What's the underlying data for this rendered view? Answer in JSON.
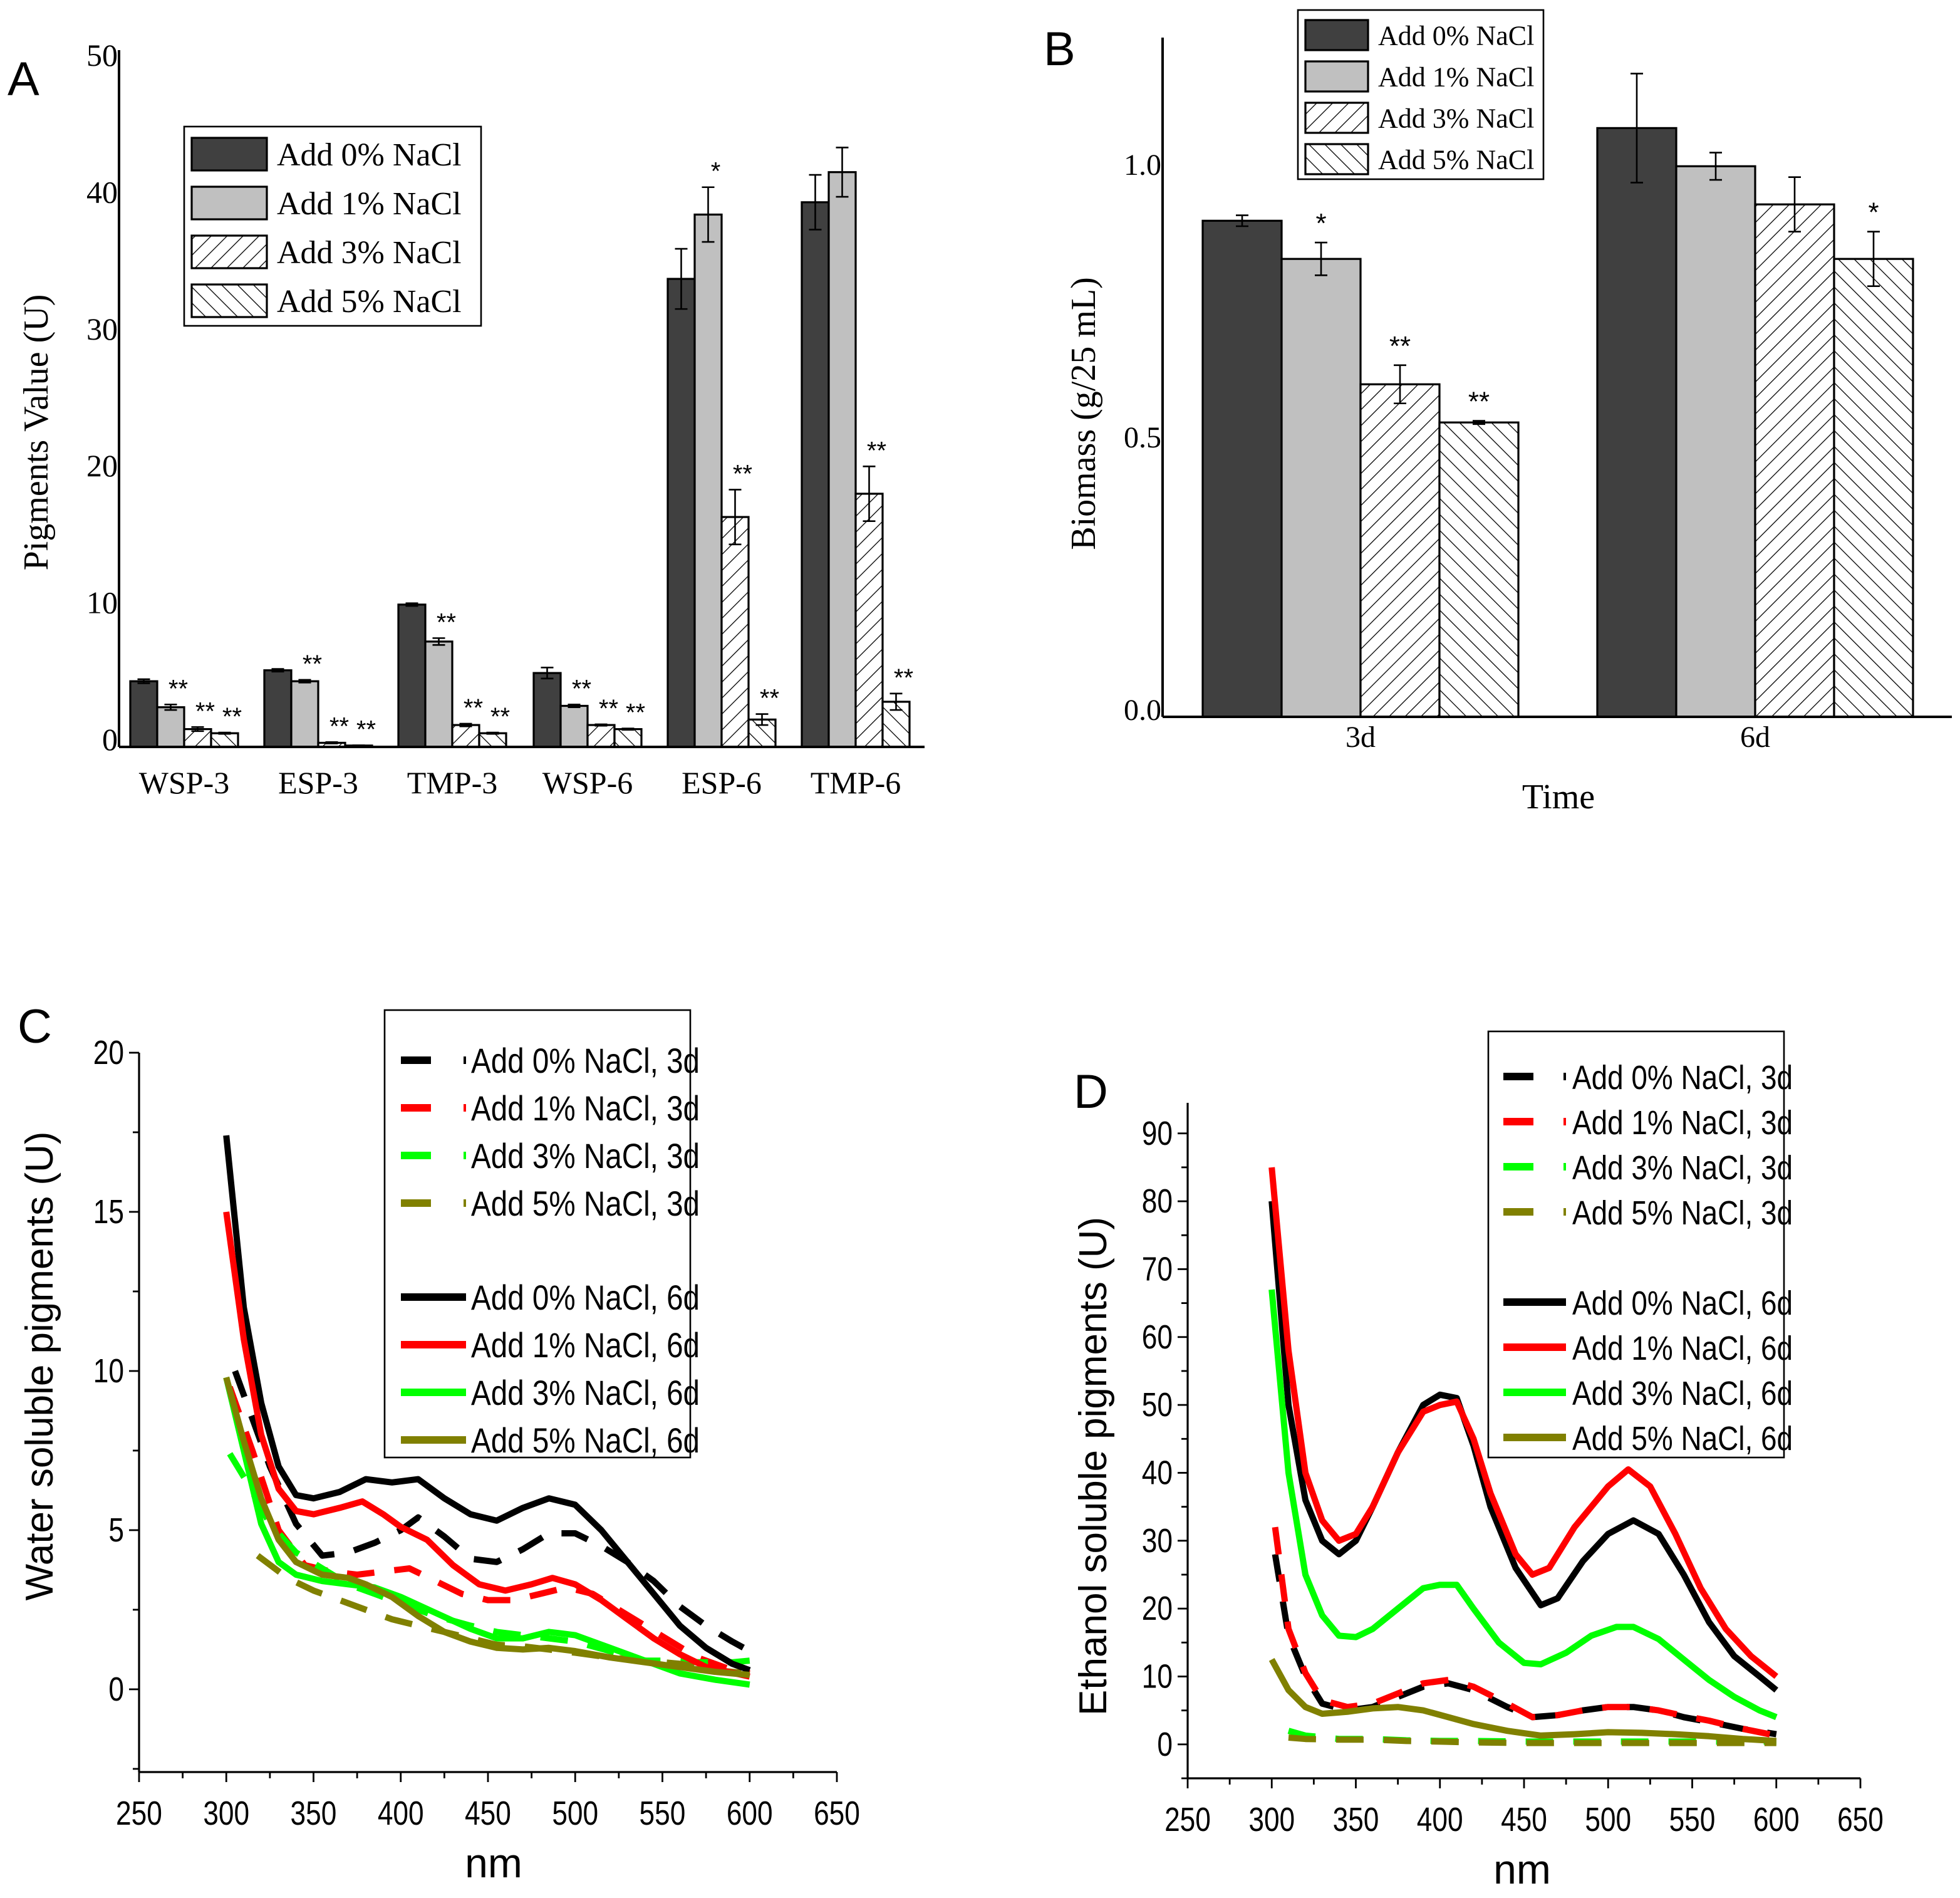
{
  "figure_labels": {
    "a": "A",
    "b": "B",
    "c": "C",
    "d": "D"
  },
  "colors": {
    "dark_bar": "#404040",
    "light_bar": "#c0c0c0",
    "black": "#000000",
    "red": "#ff0000",
    "green": "#00ff00",
    "olive": "#808000"
  },
  "chart_data": [
    {
      "panel": "A",
      "type": "bar",
      "title": "",
      "xlabel": "",
      "ylabel": "Pigments Value (U)",
      "ylim": [
        0,
        50
      ],
      "yticks": [
        "0",
        "10",
        "20",
        "30",
        "40",
        "50"
      ],
      "categories": [
        "WSP-3",
        "ESP-3",
        "TMP-3",
        "WSP-6",
        "ESP-6",
        "TMP-6"
      ],
      "legend_position": "upper-left",
      "series": [
        {
          "name": "Add 0% NaCl",
          "fill": "dark",
          "values": [
            4.8,
            5.6,
            10.4,
            5.4,
            34.2,
            39.8
          ],
          "errors": [
            0.15,
            0.1,
            0.1,
            0.4,
            2.2,
            2.0
          ],
          "significance": [
            "",
            "",
            "",
            "",
            "",
            ""
          ]
        },
        {
          "name": "Add 1% NaCl",
          "fill": "light",
          "values": [
            2.9,
            4.8,
            7.7,
            3.0,
            38.9,
            42.0
          ],
          "errors": [
            0.2,
            0.1,
            0.25,
            0.1,
            2.0,
            1.8
          ],
          "significance": [
            "**",
            "**",
            "**",
            "**",
            "*",
            ""
          ]
        },
        {
          "name": "Add 3% NaCl",
          "fill": "hatch-forward",
          "values": [
            1.3,
            0.3,
            1.6,
            1.6,
            16.8,
            18.5
          ],
          "errors": [
            0.15,
            0.05,
            0.1,
            0.05,
            2.0,
            2.0
          ],
          "significance": [
            "**",
            "**",
            "**",
            "**",
            "**",
            "**"
          ]
        },
        {
          "name": "Add 5% NaCl",
          "fill": "hatch-back",
          "values": [
            1.0,
            0.1,
            1.0,
            1.3,
            2.0,
            3.3
          ],
          "errors": [
            0.05,
            0.02,
            0.05,
            0.05,
            0.4,
            0.6
          ],
          "significance": [
            "**",
            "**",
            "**",
            "**",
            "**",
            "**"
          ]
        }
      ]
    },
    {
      "panel": "B",
      "type": "bar",
      "title": "",
      "xlabel": "Time",
      "ylabel": "Biomass (g/25 mL)",
      "ylim": [
        0,
        1.25
      ],
      "yticks": [
        "0.0",
        "0.5",
        "1.0"
      ],
      "categories": [
        "3d",
        "6d"
      ],
      "legend_position": "top-center",
      "series": [
        {
          "name": "Add 0% NaCl",
          "fill": "dark",
          "values": [
            0.91,
            1.08
          ],
          "errors": [
            0.01,
            0.1
          ],
          "significance": [
            "",
            ""
          ]
        },
        {
          "name": "Add 1% NaCl",
          "fill": "light",
          "values": [
            0.84,
            1.01
          ],
          "errors": [
            0.03,
            0.025
          ],
          "significance": [
            "*",
            ""
          ]
        },
        {
          "name": "Add 3% NaCl",
          "fill": "hatch-forward",
          "values": [
            0.61,
            0.94
          ],
          "errors": [
            0.035,
            0.05
          ],
          "significance": [
            "**",
            ""
          ]
        },
        {
          "name": "Add 5% NaCl",
          "fill": "hatch-back",
          "values": [
            0.54,
            0.84
          ],
          "errors": [
            0.003,
            0.05
          ],
          "significance": [
            "**",
            "*"
          ]
        }
      ]
    },
    {
      "panel": "C",
      "type": "line",
      "title": "",
      "xlabel": "nm",
      "ylabel": "Water soluble pigments (U)",
      "xlim": [
        250,
        650
      ],
      "ylim": [
        -2.6,
        20
      ],
      "xticks": [
        "250",
        "300",
        "350",
        "400",
        "450",
        "500",
        "550",
        "600",
        "650"
      ],
      "yticks": [
        "0",
        "5",
        "10",
        "15",
        "20"
      ],
      "legend_position": "upper-right",
      "series": [
        {
          "name": "Add 0% NaCl, 3d",
          "color": "black",
          "style": "dashed",
          "x": [
            305,
            315,
            325,
            340,
            355,
            370,
            385,
            400,
            410,
            425,
            440,
            455,
            470,
            485,
            500,
            515,
            530,
            545,
            560,
            575,
            590,
            600
          ],
          "y": [
            10,
            8.5,
            7,
            5.2,
            4.2,
            4.3,
            4.6,
            5.0,
            5.4,
            4.8,
            4.1,
            4.0,
            4.4,
            4.9,
            4.9,
            4.5,
            4.0,
            3.4,
            2.6,
            2.0,
            1.5,
            1.2
          ]
        },
        {
          "name": "Add 1% NaCl, 3d",
          "color": "red",
          "style": "dashed",
          "x": [
            302,
            315,
            330,
            345,
            360,
            375,
            390,
            405,
            420,
            435,
            450,
            465,
            480,
            495,
            510,
            525,
            540,
            555,
            570,
            590,
            600
          ],
          "y": [
            9.5,
            7.5,
            5.0,
            3.9,
            3.7,
            3.6,
            3.7,
            3.8,
            3.4,
            3.0,
            2.8,
            2.8,
            3.0,
            3.2,
            3.0,
            2.5,
            2.0,
            1.5,
            1.0,
            0.6,
            0.5
          ]
        },
        {
          "name": "Add 3% NaCl, 3d",
          "color": "green",
          "style": "dashed",
          "x": [
            302,
            312,
            325,
            340,
            355,
            370,
            385,
            400,
            420,
            440,
            455,
            470,
            485,
            500,
            520,
            540,
            555,
            570,
            590,
            600
          ],
          "y": [
            7.4,
            6.5,
            5.2,
            4.3,
            3.8,
            3.3,
            3.0,
            2.7,
            2.3,
            2.0,
            1.8,
            1.7,
            1.6,
            1.5,
            1.2,
            0.9,
            0.9,
            0.85,
            0.85,
            0.9
          ]
        },
        {
          "name": "Add 5% NaCl, 3d",
          "color": "olive",
          "style": "dashed",
          "x": [
            318,
            335,
            350,
            365,
            380,
            395,
            410,
            425,
            440,
            455,
            470,
            485,
            500,
            520,
            540,
            560,
            580,
            600
          ],
          "y": [
            4.2,
            3.5,
            3.1,
            2.8,
            2.5,
            2.2,
            2.0,
            1.8,
            1.6,
            1.4,
            1.35,
            1.25,
            1.15,
            1.0,
            0.9,
            0.8,
            0.6,
            0.5
          ]
        },
        {
          "name": "Add 0% NaCl, 6d",
          "color": "black",
          "style": "solid",
          "x": [
            300,
            310,
            320,
            330,
            340,
            350,
            365,
            380,
            395,
            410,
            425,
            440,
            455,
            470,
            485,
            500,
            515,
            530,
            545,
            560,
            575,
            590,
            600
          ],
          "y": [
            17.4,
            12,
            9,
            7,
            6.1,
            6.0,
            6.2,
            6.6,
            6.5,
            6.6,
            6.0,
            5.5,
            5.3,
            5.7,
            6.0,
            5.8,
            5.0,
            4.0,
            3.0,
            2.0,
            1.3,
            0.8,
            0.6
          ]
        },
        {
          "name": "Add 1% NaCl, 6d",
          "color": "red",
          "style": "solid",
          "x": [
            300,
            310,
            320,
            330,
            340,
            350,
            365,
            378,
            390,
            400,
            415,
            430,
            445,
            460,
            475,
            487,
            500,
            515,
            530,
            545,
            560,
            575,
            600
          ],
          "y": [
            15.0,
            11,
            8,
            6.3,
            5.6,
            5.5,
            5.7,
            5.9,
            5.5,
            5.1,
            4.7,
            3.9,
            3.3,
            3.1,
            3.3,
            3.5,
            3.3,
            2.8,
            2.2,
            1.6,
            1.1,
            0.7,
            0.4
          ]
        },
        {
          "name": "Add 3% NaCl, 6d",
          "color": "green",
          "style": "solid",
          "x": [
            300,
            310,
            320,
            330,
            340,
            355,
            370,
            385,
            400,
            420,
            440,
            455,
            470,
            485,
            500,
            520,
            540,
            560,
            580,
            600
          ],
          "y": [
            9.8,
            7.5,
            5.2,
            4.0,
            3.6,
            3.4,
            3.3,
            3.2,
            2.9,
            2.4,
            1.9,
            1.6,
            1.6,
            1.8,
            1.7,
            1.3,
            0.9,
            0.5,
            0.3,
            0.15
          ]
        },
        {
          "name": "Add 5% NaCl, 6d",
          "color": "olive",
          "style": "solid",
          "x": [
            300,
            310,
            320,
            330,
            340,
            355,
            370,
            380,
            395,
            410,
            425,
            440,
            455,
            470,
            485,
            500,
            520,
            540,
            560,
            580,
            600
          ],
          "y": [
            9.8,
            7.8,
            6.0,
            4.7,
            4.0,
            3.6,
            3.5,
            3.3,
            2.9,
            2.3,
            1.8,
            1.5,
            1.3,
            1.25,
            1.3,
            1.2,
            1.0,
            0.85,
            0.7,
            0.55,
            0.45
          ]
        }
      ]
    },
    {
      "panel": "D",
      "type": "line",
      "title": "",
      "xlabel": "nm",
      "ylabel": "Ethanol soluble pigments (U)",
      "xlim": [
        250,
        650
      ],
      "ylim": [
        -5,
        94.5
      ],
      "xticks": [
        "250",
        "300",
        "350",
        "400",
        "450",
        "500",
        "550",
        "600",
        "650"
      ],
      "yticks": [
        "0",
        "10",
        "20",
        "30",
        "40",
        "50",
        "60",
        "70",
        "80",
        "90"
      ],
      "legend_position": "upper-right",
      "series": [
        {
          "name": "Add 0% NaCl, 3d",
          "color": "black",
          "style": "dashed",
          "x": [
            302,
            310,
            320,
            330,
            345,
            360,
            375,
            390,
            405,
            420,
            440,
            455,
            470,
            485,
            500,
            515,
            530,
            545,
            560,
            580,
            600
          ],
          "y": [
            28,
            16,
            10,
            6,
            5,
            5.5,
            7,
            8.5,
            9,
            8,
            5.5,
            4,
            4.3,
            5,
            5.5,
            5.5,
            5,
            4,
            3.3,
            2.3,
            1.5
          ]
        },
        {
          "name": "Add 1% NaCl, 3d",
          "color": "red",
          "style": "dashed",
          "x": [
            302,
            310,
            320,
            330,
            345,
            360,
            375,
            390,
            405,
            420,
            440,
            455,
            470,
            485,
            500,
            515,
            530,
            545,
            560,
            580,
            600
          ],
          "y": [
            32,
            17,
            10.5,
            6.5,
            5.5,
            6,
            7.5,
            9,
            9.5,
            8.5,
            6,
            4,
            4.3,
            5,
            5.5,
            5.5,
            5,
            4.2,
            3.5,
            2.3,
            1.3
          ]
        },
        {
          "name": "Add 3% NaCl, 3d",
          "color": "green",
          "style": "dashed",
          "x": [
            310,
            320,
            340,
            360,
            380,
            400,
            420,
            450,
            480,
            510,
            540,
            570,
            600
          ],
          "y": [
            2,
            1.3,
            0.8,
            0.8,
            0.6,
            0.5,
            0.5,
            0.4,
            0.4,
            0.4,
            0.4,
            0.4,
            0.4
          ]
        },
        {
          "name": "Add 5% NaCl, 3d",
          "color": "olive",
          "style": "dashed",
          "x": [
            310,
            320,
            340,
            360,
            380,
            400,
            420,
            450,
            480,
            510,
            540,
            570,
            600
          ],
          "y": [
            1,
            0.8,
            0.7,
            0.7,
            0.5,
            0.4,
            0.3,
            0.2,
            0.2,
            0.2,
            0.2,
            0.2,
            0.2
          ]
        },
        {
          "name": "Add 0% NaCl, 6d",
          "color": "black",
          "style": "solid",
          "x": [
            300,
            310,
            320,
            330,
            340,
            350,
            360,
            375,
            390,
            400,
            410,
            420,
            430,
            445,
            460,
            470,
            485,
            500,
            515,
            530,
            545,
            560,
            575,
            590,
            600
          ],
          "y": [
            80,
            50,
            36,
            30,
            28,
            30,
            35,
            43,
            50,
            51.5,
            51,
            44,
            35,
            26,
            20.5,
            21.5,
            27,
            31,
            33,
            31,
            25,
            18,
            13,
            10,
            8
          ]
        },
        {
          "name": "Add 1% NaCl, 6d",
          "color": "red",
          "style": "solid",
          "x": [
            300,
            310,
            320,
            330,
            340,
            350,
            360,
            375,
            390,
            400,
            410,
            420,
            430,
            445,
            455,
            465,
            480,
            500,
            512,
            525,
            540,
            555,
            570,
            585,
            600
          ],
          "y": [
            85,
            58,
            40,
            33,
            30,
            31,
            35,
            43,
            49,
            50,
            50.5,
            45,
            37,
            28,
            25,
            26,
            32,
            38,
            40.5,
            38,
            31,
            23,
            17,
            13,
            10
          ]
        },
        {
          "name": "Add 3% NaCl, 6d",
          "color": "green",
          "style": "solid",
          "x": [
            300,
            310,
            320,
            330,
            340,
            350,
            360,
            375,
            390,
            400,
            410,
            420,
            435,
            450,
            460,
            475,
            490,
            505,
            515,
            530,
            545,
            560,
            575,
            590,
            600
          ],
          "y": [
            67,
            40,
            25,
            19,
            16,
            15.8,
            17,
            20,
            23,
            23.5,
            23.5,
            20,
            15,
            12,
            11.8,
            13.5,
            16,
            17.3,
            17.3,
            15.5,
            12.5,
            9.5,
            7,
            5,
            4
          ]
        },
        {
          "name": "Add 5% NaCl, 6d",
          "color": "olive",
          "style": "solid",
          "x": [
            300,
            310,
            320,
            330,
            345,
            360,
            375,
            390,
            405,
            420,
            440,
            460,
            480,
            500,
            520,
            540,
            560,
            580,
            600
          ],
          "y": [
            12.5,
            8,
            5.5,
            4.5,
            4.8,
            5.3,
            5.5,
            5,
            4,
            3,
            2,
            1.3,
            1.5,
            1.8,
            1.7,
            1.5,
            1.2,
            0.8,
            0.5
          ]
        }
      ]
    }
  ]
}
